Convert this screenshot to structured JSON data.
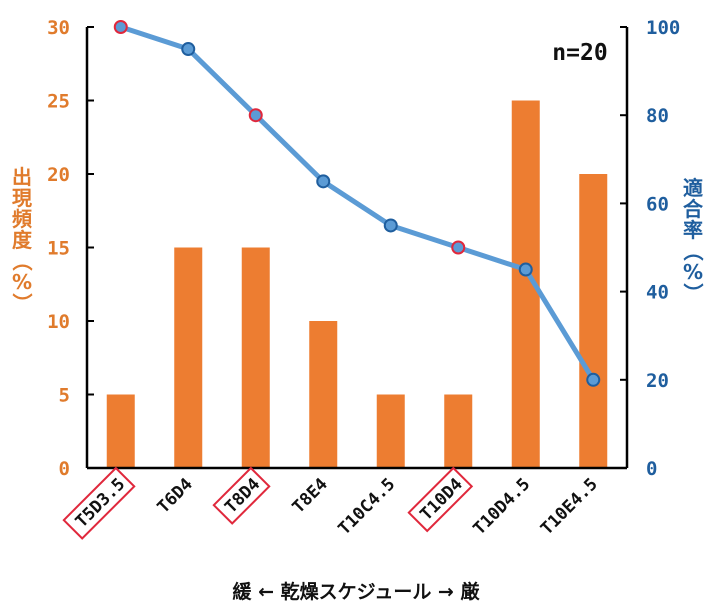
{
  "chart_data": {
    "type": "bar",
    "categories": [
      "T5D3.5",
      "T6D4",
      "T8D4",
      "T8E4",
      "T10C4.5",
      "T10D4",
      "T10D4.5",
      "T10E4.5"
    ],
    "highlighted_categories": [
      "T5D3.5",
      "T8D4",
      "T10D4"
    ],
    "series": [
      {
        "name": "出現頻度",
        "type": "bar",
        "axis": "left",
        "color": "#ed7d31",
        "values": [
          5,
          15,
          15,
          10,
          5,
          5,
          25,
          20
        ]
      },
      {
        "name": "適合率",
        "type": "line",
        "axis": "right",
        "color": "#5b9bd5",
        "values": [
          100,
          95,
          80,
          65,
          55,
          50,
          45,
          20
        ]
      }
    ],
    "ylabel_left": "出現頻度（%）",
    "ylabel_right": "適合率（%）",
    "ylim_left": [
      0,
      30
    ],
    "yticks_left": [
      "0",
      "5",
      "10",
      "15",
      "20",
      "25",
      "30"
    ],
    "ylim_right": [
      0,
      100
    ],
    "yticks_right": [
      "0",
      "20",
      "40",
      "60",
      "80",
      "100"
    ],
    "xlabel": "緩 ← 乾燥スケジュール → 厳",
    "annotation": "n=20",
    "grid": false,
    "colors": {
      "left_axis": "#e07b2c",
      "right_axis": "#1f5e9e",
      "marker_highlight": "#e0283c",
      "box": "#e0283c"
    }
  }
}
